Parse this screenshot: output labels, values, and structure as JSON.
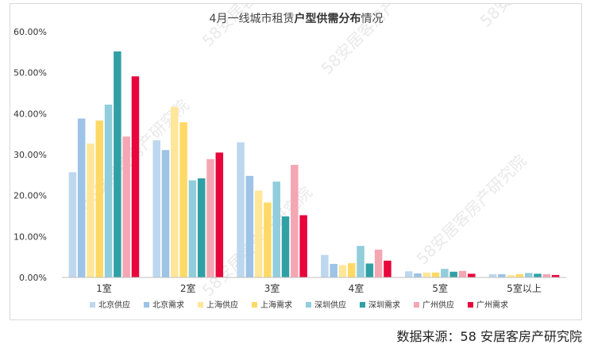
{
  "chart_data": {
    "type": "bar",
    "title_prefix": "4月一线城市租赁",
    "title_bold": "户型供需分布",
    "title_suffix": "情况",
    "categories": [
      "1室",
      "2室",
      "3室",
      "4室",
      "5室",
      "5室以上"
    ],
    "ylim": [
      0,
      0.6
    ],
    "yticks": [
      "0.00%",
      "10.00%",
      "20.00%",
      "30.00%",
      "40.00%",
      "50.00%",
      "60.00%"
    ],
    "grid": false,
    "legend_position": "bottom",
    "series": [
      {
        "name": "北京供应",
        "color": "#bdd7ee",
        "values": [
          0.257,
          0.335,
          0.33,
          0.055,
          0.015,
          0.008
        ]
      },
      {
        "name": "北京需求",
        "color": "#9dc3e6",
        "values": [
          0.388,
          0.311,
          0.248,
          0.033,
          0.01,
          0.008
        ]
      },
      {
        "name": "上海供应",
        "color": "#ffe699",
        "values": [
          0.327,
          0.416,
          0.212,
          0.03,
          0.012,
          0.006
        ]
      },
      {
        "name": "上海需求",
        "color": "#ffd966",
        "values": [
          0.383,
          0.379,
          0.183,
          0.035,
          0.012,
          0.008
        ]
      },
      {
        "name": "深圳供应",
        "color": "#92cddc",
        "values": [
          0.422,
          0.237,
          0.234,
          0.077,
          0.021,
          0.011
        ]
      },
      {
        "name": "深圳需求",
        "color": "#31a0a5",
        "values": [
          0.552,
          0.242,
          0.149,
          0.034,
          0.014,
          0.009
        ]
      },
      {
        "name": "广州供应",
        "color": "#f4a6b3",
        "values": [
          0.344,
          0.289,
          0.275,
          0.068,
          0.016,
          0.008
        ]
      },
      {
        "name": "广州需求",
        "color": "#e8063d",
        "values": [
          0.491,
          0.305,
          0.152,
          0.041,
          0.009,
          0.006
        ]
      }
    ]
  },
  "watermark_text": "58安居客房产研究院",
  "source_note": "数据来源：58 安居客房产研究院"
}
